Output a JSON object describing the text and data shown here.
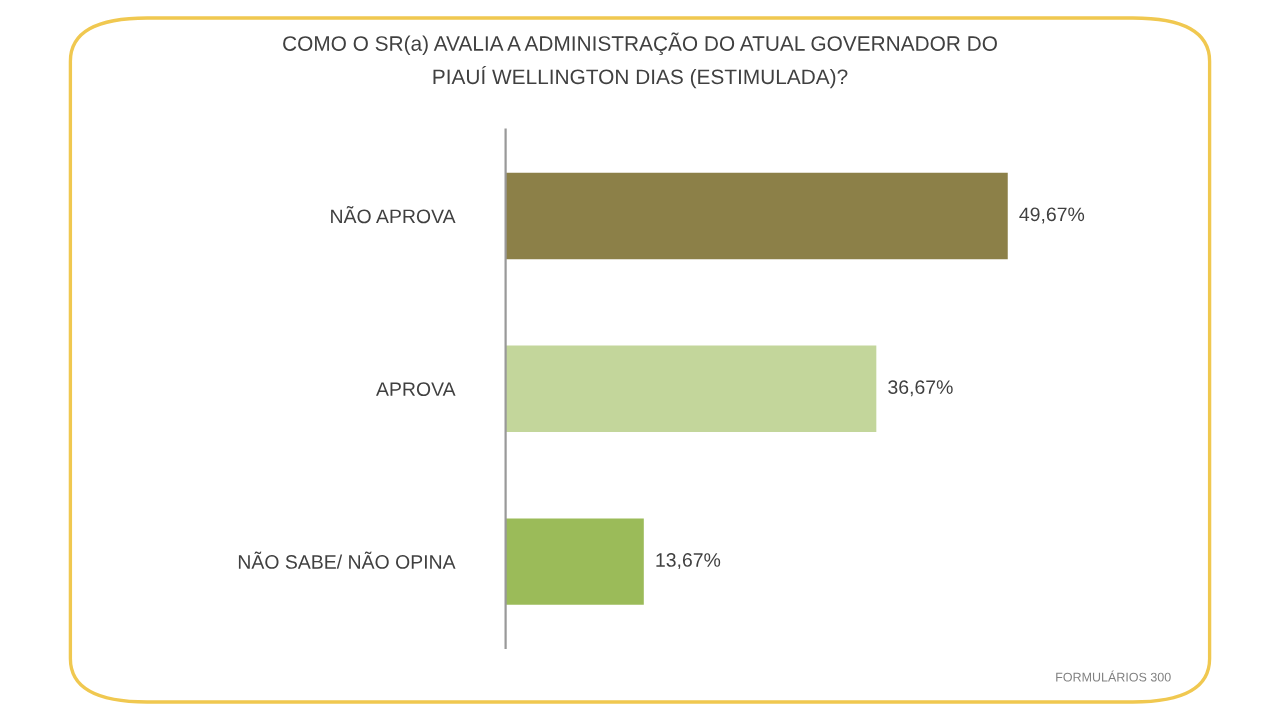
{
  "chart_data": {
    "type": "bar",
    "orientation": "horizontal",
    "title": "COMO O SR(a) AVALIA A ADMINISTRAÇÃO DO ATUAL GOVERNADOR DO\nPIAUÍ WELLINGTON DIAS (ESTIMULADA)?",
    "categories": [
      "NÃO APROVA",
      "APROVA",
      "NÃO SABE/ NÃO OPINA"
    ],
    "values": [
      49.67,
      36.67,
      13.67
    ],
    "colors": [
      "#8c8048",
      "#c3d69b",
      "#9bbb59"
    ],
    "value_labels": [
      "49,67%",
      "36,67%",
      "13,67%"
    ],
    "annotations": [
      "FORMULÁRIOS 300"
    ],
    "grid": false,
    "legend": false
  }
}
